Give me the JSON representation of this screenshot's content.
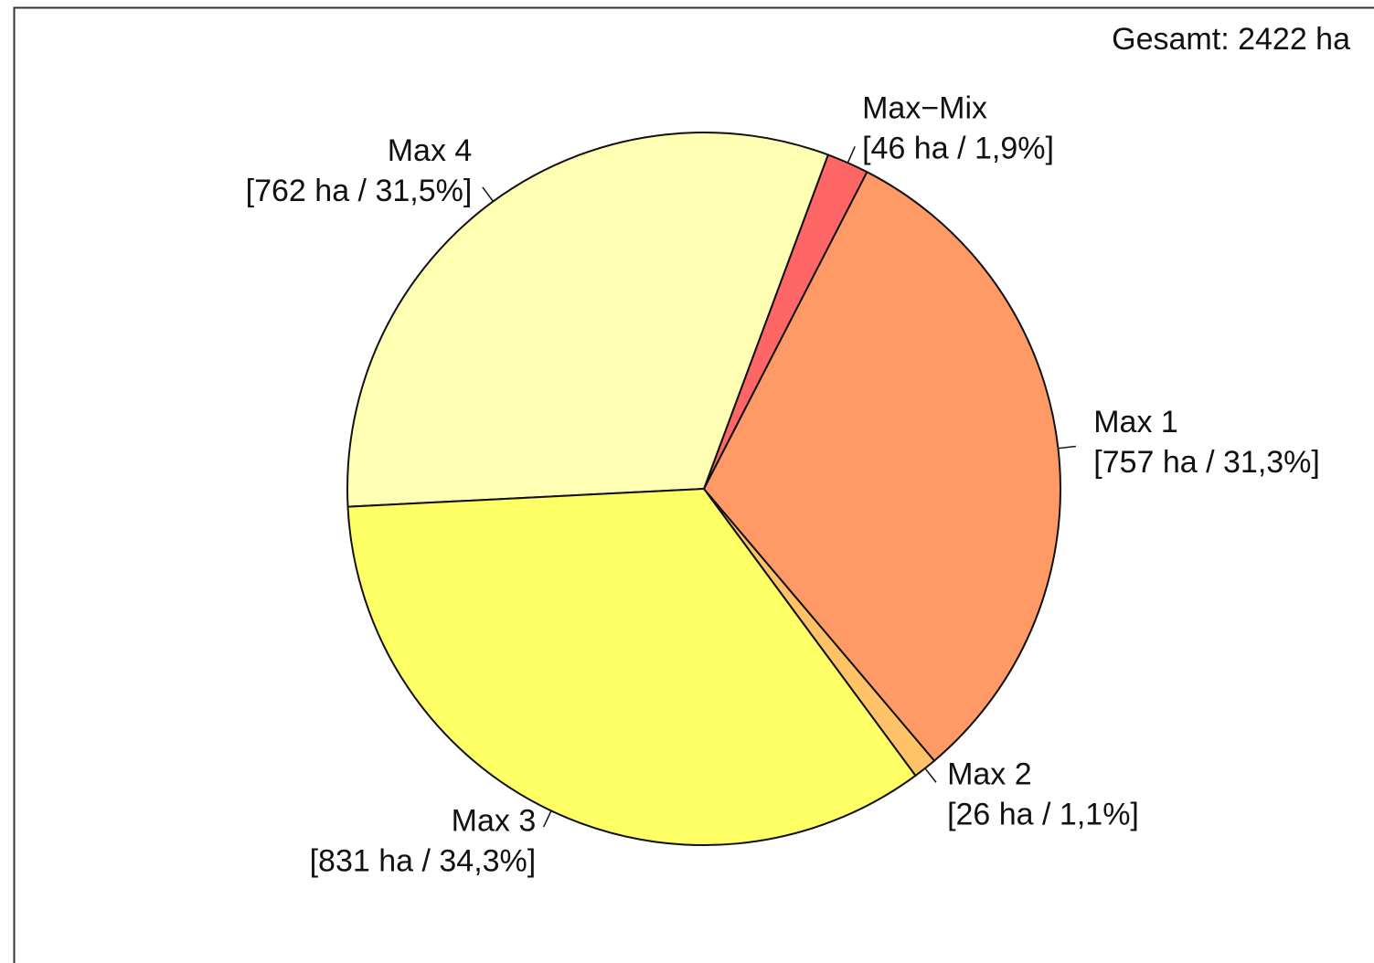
{
  "chart_data": {
    "type": "pie",
    "annotation": "Gesamt: 2422 ha",
    "categories": [
      "Max 2",
      "Max 1",
      "Max−Mix",
      "Max 4",
      "Max 3"
    ],
    "values": [
      26,
      757,
      46,
      762,
      831
    ],
    "value_labels": [
      "[26 ha / 1,1%]",
      "[757 ha / 31,3%]",
      "[46 ha / 1,9%]",
      "[762 ha / 31,5%]",
      "[831 ha / 34,3%]"
    ],
    "colors": [
      "#ffc266",
      "#ff9966",
      "#ff6666",
      "#ffffb3",
      "#ffff66"
    ]
  }
}
